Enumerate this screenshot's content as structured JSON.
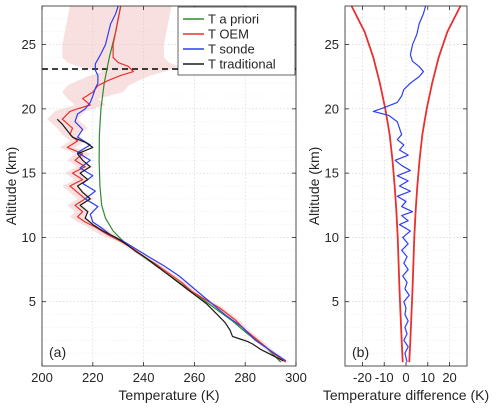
{
  "colors": {
    "apriori": "#2e8b2e",
    "oem": "#e8312e",
    "sonde": "#2f3ff0",
    "traditional": "#1a1a1a",
    "uncertainty": "#f4c6c6",
    "tropopause": "#000000",
    "grid": "#cfcfcf",
    "axis": "#262626"
  },
  "chart_data": [
    {
      "type": "line",
      "panel_label": "(a)",
      "xlabel": "Temperature (K)",
      "ylabel": "Altitude (km)",
      "xlim": [
        200,
        300
      ],
      "ylim": [
        0,
        28
      ],
      "xticks": [
        200,
        220,
        240,
        260,
        280,
        300
      ],
      "yticks": [
        5,
        10,
        15,
        20,
        25
      ],
      "xtick_labels": [
        "200",
        "220",
        "240",
        "260",
        "280",
        "300"
      ],
      "ytick_labels": [
        "5",
        "10",
        "15",
        "20",
        "25"
      ],
      "grid": true,
      "legend_position": "top-right",
      "legend": [
        "T a priori",
        "T OEM",
        "T sonde",
        "T traditional"
      ],
      "horizontal_line": {
        "y": 23.1,
        "style": "dashed"
      },
      "series": [
        {
          "name": "T a priori",
          "color_key": "apriori",
          "points": [
            [
              294,
              0.3
            ],
            [
              288,
              1.5
            ],
            [
              281,
              2.5
            ],
            [
              275,
              3.5
            ],
            [
              268,
              4.5
            ],
            [
              261,
              5.5
            ],
            [
              254,
              6.5
            ],
            [
              247,
              7.5
            ],
            [
              240,
              8.5
            ],
            [
              233,
              9.5
            ],
            [
              228,
              10.5
            ],
            [
              225,
              11.5
            ],
            [
              223.5,
              12.5
            ],
            [
              222.8,
              14
            ],
            [
              222.5,
              16
            ],
            [
              222.6,
              18
            ],
            [
              223.2,
              20
            ],
            [
              224.5,
              22
            ],
            [
              226.5,
              24
            ],
            [
              229,
              26
            ],
            [
              231,
              28
            ]
          ]
        },
        {
          "name": "T OEM",
          "color_key": "oem",
          "points": [
            [
              296,
              0.3
            ],
            [
              291,
              1
            ],
            [
              285,
              2
            ],
            [
              280,
              2.8
            ],
            [
              276,
              3.6
            ],
            [
              270,
              4.5
            ],
            [
              264,
              5.2
            ],
            [
              259,
              5.8
            ],
            [
              255,
              6.5
            ],
            [
              250,
              7.2
            ],
            [
              245,
              7.9
            ],
            [
              241,
              8.4
            ],
            [
              236,
              9.1
            ],
            [
              231,
              9.7
            ],
            [
              226,
              10.2
            ],
            [
              221,
              10.8
            ],
            [
              217,
              11.2
            ],
            [
              214,
              11.6
            ],
            [
              216,
              12
            ],
            [
              213,
              12.5
            ],
            [
              217,
              13
            ],
            [
              214,
              13.5
            ],
            [
              211,
              14
            ],
            [
              216,
              14.5
            ],
            [
              212,
              15
            ],
            [
              217,
              15.5
            ],
            [
              213,
              16
            ],
            [
              216,
              16.5
            ],
            [
              210,
              17
            ],
            [
              214,
              17.5
            ],
            [
              211,
              18
            ],
            [
              212,
              18.5
            ],
            [
              208,
              19.2
            ],
            [
              211,
              19.8
            ],
            [
              214,
              20
            ],
            [
              219,
              20.3
            ],
            [
              216,
              20.8
            ],
            [
              220,
              21.3
            ],
            [
              222,
              21.8
            ],
            [
              226,
              22.2
            ],
            [
              231,
              22.6
            ],
            [
              236,
              22.9
            ],
            [
              234,
              23.3
            ],
            [
              230,
              23.6
            ],
            [
              228,
              24
            ],
            [
              228,
              25
            ],
            [
              229,
              26
            ],
            [
              230,
              27
            ],
            [
              231,
              28
            ]
          ]
        },
        {
          "name": "T sonde",
          "color_key": "sonde",
          "points": [
            [
              296,
              0.4
            ],
            [
              290,
              1.2
            ],
            [
              284,
              2
            ],
            [
              279,
              3
            ],
            [
              272,
              4
            ],
            [
              266,
              5
            ],
            [
              260,
              6
            ],
            [
              254,
              7
            ],
            [
              248,
              7.8
            ],
            [
              242,
              8.5
            ],
            [
              237,
              9.1
            ],
            [
              232,
              9.7
            ],
            [
              227,
              10.2
            ],
            [
              223,
              10.8
            ],
            [
              220,
              11.2
            ],
            [
              219,
              11.8
            ],
            [
              222,
              12.4
            ],
            [
              217,
              13
            ],
            [
              221,
              13.6
            ],
            [
              216,
              14.2
            ],
            [
              220,
              14.8
            ],
            [
              215,
              15.4
            ],
            [
              219,
              16
            ],
            [
              214,
              16.6
            ],
            [
              219,
              17.2
            ],
            [
              214,
              17.8
            ],
            [
              216,
              18.4
            ],
            [
              213,
              19
            ],
            [
              214,
              19.6
            ],
            [
              217,
              20
            ],
            [
              219,
              20.5
            ],
            [
              220,
              21
            ],
            [
              221,
              21.6
            ],
            [
              222,
              22
            ],
            [
              222,
              22.6
            ],
            [
              221,
              23
            ],
            [
              221,
              23.5
            ],
            [
              223,
              24.2
            ],
            [
              225,
              25
            ],
            [
              226,
              25.8
            ],
            [
              227,
              26.6
            ],
            [
              229,
              27.4
            ],
            [
              230,
              28
            ]
          ]
        },
        {
          "name": "T traditional",
          "color_key": "traditional",
          "points": [
            [
              295,
              0.4
            ],
            [
              290,
              0.9
            ],
            [
              286,
              1.3
            ],
            [
              283,
              1.7
            ],
            [
              281,
              1.9
            ],
            [
              278,
              2.1
            ],
            [
              275,
              2.3
            ],
            [
              274,
              2.8
            ],
            [
              272,
              3.4
            ],
            [
              269,
              4
            ],
            [
              265,
              4.8
            ],
            [
              261,
              5.4
            ],
            [
              257,
              6
            ],
            [
              253,
              6.6
            ],
            [
              249,
              7.2
            ],
            [
              245,
              7.8
            ],
            [
              241,
              8.4
            ],
            [
              237,
              8.9
            ],
            [
              233,
              9.5
            ],
            [
              229,
              10
            ],
            [
              224,
              10.5
            ],
            [
              220,
              11
            ],
            [
              217,
              11.5
            ],
            [
              218,
              12
            ],
            [
              215,
              12.5
            ],
            [
              219,
              13
            ],
            [
              216,
              13.5
            ],
            [
              214,
              14
            ],
            [
              218,
              14.5
            ],
            [
              215,
              15
            ],
            [
              219,
              15.5
            ],
            [
              216,
              16
            ],
            [
              214,
              16.5
            ],
            [
              220,
              17
            ],
            [
              217,
              17.4
            ],
            [
              212,
              17.8
            ],
            [
              210,
              18.3
            ],
            [
              208,
              18.8
            ],
            [
              206,
              19.2
            ]
          ]
        }
      ]
    },
    {
      "type": "line",
      "panel_label": "(b)",
      "xlabel": "Temperature difference (K)",
      "ylabel": "Altitude (km)",
      "xlim": [
        -28,
        28
      ],
      "ylim": [
        0,
        28
      ],
      "xticks": [
        -20,
        -10,
        0,
        10,
        20
      ],
      "yticks": [
        5,
        10,
        15,
        20,
        25
      ],
      "xtick_labels": [
        "-20",
        "-10",
        "0",
        "10",
        "20"
      ],
      "ytick_labels": [
        "5",
        "10",
        "15",
        "20",
        "25"
      ],
      "grid": true,
      "series": [
        {
          "color_key": "oem",
          "style": "envelope",
          "points": [
            [
              1.5,
              0.3
            ],
            [
              2,
              2
            ],
            [
              2.5,
              4
            ],
            [
              3,
              6
            ],
            [
              3.4,
              8
            ],
            [
              3.8,
              10
            ],
            [
              4.4,
              12
            ],
            [
              5.2,
              14
            ],
            [
              6.2,
              16
            ],
            [
              7.5,
              18
            ],
            [
              9.5,
              20
            ],
            [
              12,
              22
            ],
            [
              15,
              24
            ],
            [
              19,
              26
            ],
            [
              25,
              28
            ]
          ]
        },
        {
          "color_key": "sonde",
          "points": [
            [
              0.5,
              0.3
            ],
            [
              -0.5,
              1
            ],
            [
              1,
              1.5
            ],
            [
              -1,
              2
            ],
            [
              0.5,
              2.5
            ],
            [
              -0.5,
              3
            ],
            [
              1,
              3.5
            ],
            [
              -0.5,
              4
            ],
            [
              0,
              4.5
            ],
            [
              -1,
              5
            ],
            [
              1.5,
              5.5
            ],
            [
              -0.5,
              6
            ],
            [
              0.5,
              6.5
            ],
            [
              -1.5,
              7
            ],
            [
              1,
              7.5
            ],
            [
              -1,
              8
            ],
            [
              0.5,
              8.5
            ],
            [
              -2,
              9
            ],
            [
              1,
              9.5
            ],
            [
              -1.5,
              10
            ],
            [
              2,
              10.5
            ],
            [
              -3,
              11
            ],
            [
              1,
              11.3
            ],
            [
              -2,
              11.7
            ],
            [
              3,
              12
            ],
            [
              -2,
              12.4
            ],
            [
              0,
              12.8
            ],
            [
              -4,
              13.2
            ],
            [
              2,
              13.6
            ],
            [
              -3,
              14
            ],
            [
              1,
              14.4
            ],
            [
              -4,
              14.8
            ],
            [
              2,
              15.2
            ],
            [
              -2,
              15.6
            ],
            [
              -5,
              16
            ],
            [
              1,
              16.4
            ],
            [
              -3,
              16.8
            ],
            [
              -1,
              17.2
            ],
            [
              -4,
              17.6
            ],
            [
              -2,
              18
            ],
            [
              -3,
              18.5
            ],
            [
              -4,
              19
            ],
            [
              -8,
              19.5
            ],
            [
              -15,
              19.8
            ],
            [
              -10,
              20.1
            ],
            [
              -4,
              20.5
            ],
            [
              -2,
              21
            ],
            [
              -1,
              21.5
            ],
            [
              2,
              22
            ],
            [
              6,
              22.5
            ],
            [
              8,
              22.9
            ],
            [
              6,
              23.3
            ],
            [
              3,
              23.7
            ],
            [
              2,
              24.2
            ],
            [
              3,
              25
            ],
            [
              5,
              25.8
            ],
            [
              6,
              26.6
            ],
            [
              8,
              27.4
            ],
            [
              9,
              28
            ]
          ]
        }
      ]
    }
  ]
}
